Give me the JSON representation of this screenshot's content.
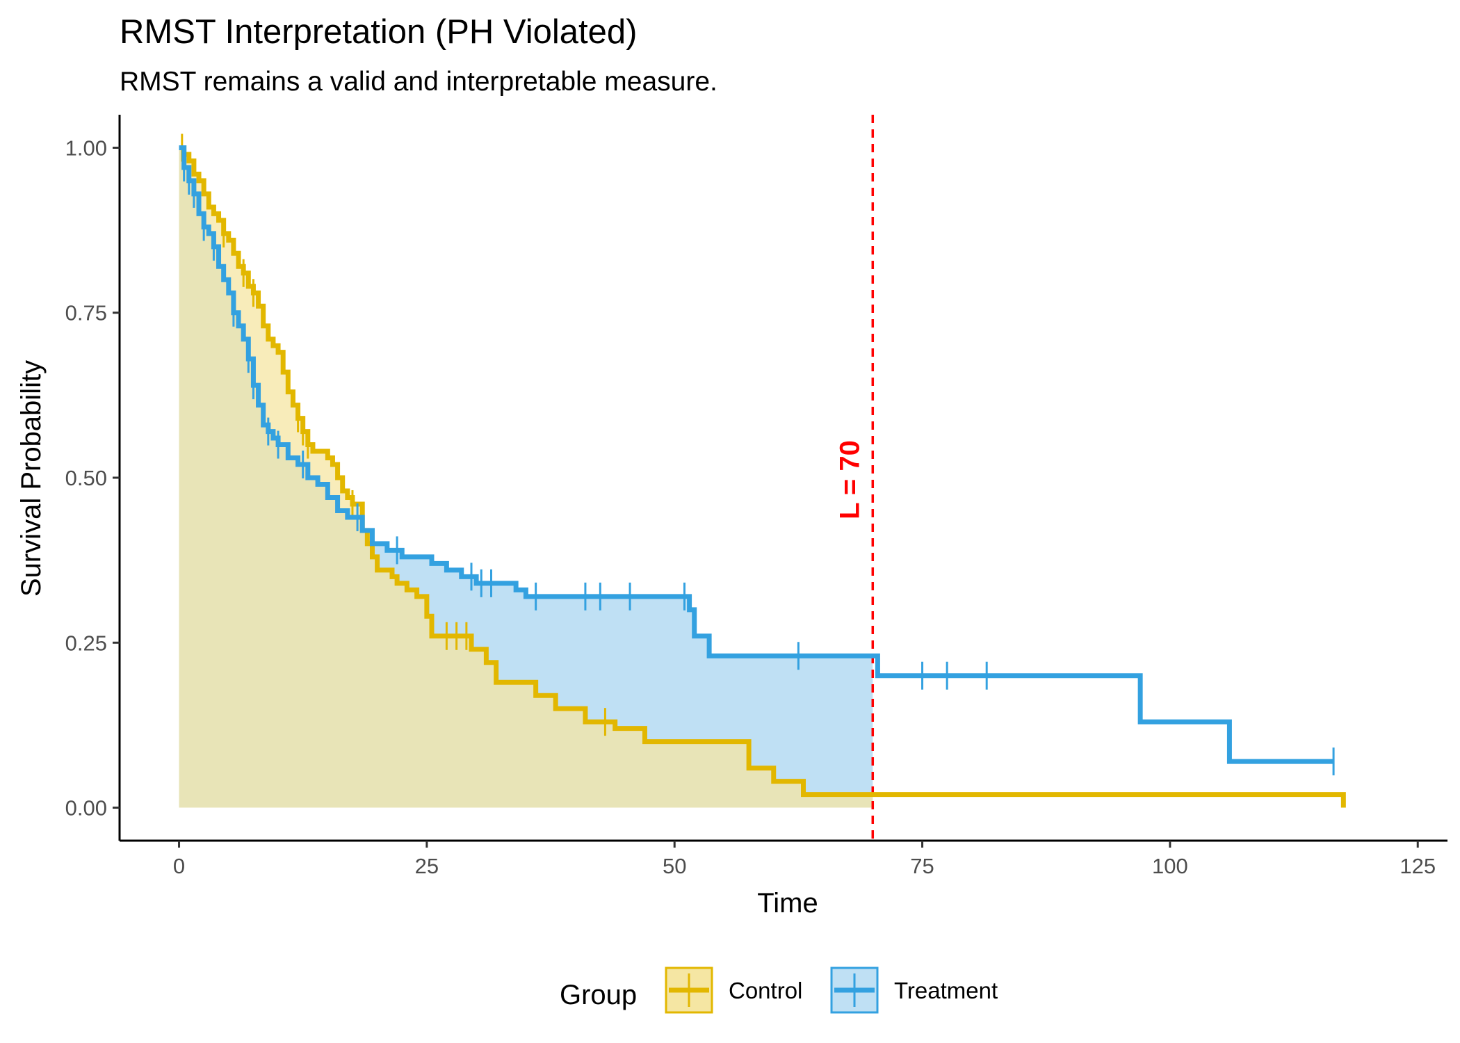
{
  "chart_data": {
    "type": "line",
    "title": "RMST Interpretation (PH Violated)",
    "subtitle": "RMST remains a valid and interpretable measure.",
    "xlabel": "Time",
    "ylabel": "Survival Probability",
    "xlim": [
      -6,
      128
    ],
    "ylim": [
      -0.05,
      1.05
    ],
    "x_ticks": [
      0,
      25,
      50,
      75,
      100,
      125
    ],
    "y_ticks": [
      0.0,
      0.25,
      0.5,
      0.75,
      1.0
    ],
    "x_tick_labels": [
      "0",
      "25",
      "50",
      "75",
      "100",
      "125"
    ],
    "y_tick_labels": [
      "0.00",
      "0.25",
      "0.50",
      "0.75",
      "1.00"
    ],
    "grid": false,
    "legend": {
      "title": "Group",
      "position": "bottom"
    },
    "reference_line": {
      "x": 70,
      "label": "L = 70",
      "color": "#ff0000",
      "style": "dashed"
    },
    "series": [
      {
        "name": "Control",
        "color": "#e2b700",
        "fill": "#f5e6a3",
        "steps": [
          [
            0,
            1.0
          ],
          [
            0.5,
            0.99
          ],
          [
            1,
            0.98
          ],
          [
            1.5,
            0.96
          ],
          [
            2,
            0.95
          ],
          [
            2.5,
            0.93
          ],
          [
            3,
            0.91
          ],
          [
            3.5,
            0.9
          ],
          [
            4,
            0.89
          ],
          [
            4.5,
            0.87
          ],
          [
            5,
            0.86
          ],
          [
            5.5,
            0.84
          ],
          [
            6,
            0.82
          ],
          [
            6.5,
            0.81
          ],
          [
            7,
            0.79
          ],
          [
            7.5,
            0.78
          ],
          [
            8,
            0.76
          ],
          [
            8.5,
            0.73
          ],
          [
            9,
            0.71
          ],
          [
            9.5,
            0.7
          ],
          [
            10,
            0.69
          ],
          [
            10.5,
            0.66
          ],
          [
            11,
            0.63
          ],
          [
            11.5,
            0.61
          ],
          [
            12,
            0.59
          ],
          [
            12.5,
            0.57
          ],
          [
            13,
            0.55
          ],
          [
            13.5,
            0.54
          ],
          [
            15,
            0.53
          ],
          [
            15.5,
            0.52
          ],
          [
            16,
            0.5
          ],
          [
            16.5,
            0.48
          ],
          [
            17,
            0.47
          ],
          [
            17.5,
            0.46
          ],
          [
            18.5,
            0.42
          ],
          [
            19,
            0.4
          ],
          [
            19.5,
            0.38
          ],
          [
            20,
            0.36
          ],
          [
            21.5,
            0.35
          ],
          [
            22,
            0.34
          ],
          [
            23,
            0.33
          ],
          [
            24,
            0.32
          ],
          [
            25,
            0.29
          ],
          [
            25.5,
            0.26
          ],
          [
            28,
            0.26
          ],
          [
            29.5,
            0.24
          ],
          [
            31,
            0.22
          ],
          [
            32,
            0.19
          ],
          [
            36,
            0.17
          ],
          [
            38,
            0.15
          ],
          [
            41,
            0.13
          ],
          [
            44,
            0.12
          ],
          [
            47,
            0.1
          ],
          [
            57.5,
            0.06
          ],
          [
            60,
            0.04
          ],
          [
            63,
            0.02
          ],
          [
            117.5,
            0.02
          ],
          [
            117.5,
            0.0
          ]
        ],
        "censor_x": [
          0.3,
          4.5,
          6.5,
          7.5,
          12.0,
          12.5,
          13.0,
          17.5,
          27.0,
          28.0,
          29.0,
          43.0
        ]
      },
      {
        "name": "Treatment",
        "color": "#33a1e0",
        "fill": "#bfe0f4",
        "steps": [
          [
            0,
            1.0
          ],
          [
            0.5,
            0.97
          ],
          [
            1,
            0.95
          ],
          [
            1.5,
            0.93
          ],
          [
            2,
            0.9
          ],
          [
            2.5,
            0.88
          ],
          [
            3,
            0.87
          ],
          [
            3.5,
            0.85
          ],
          [
            4,
            0.82
          ],
          [
            4.5,
            0.8
          ],
          [
            5,
            0.78
          ],
          [
            5.5,
            0.75
          ],
          [
            6,
            0.73
          ],
          [
            6.5,
            0.71
          ],
          [
            7,
            0.68
          ],
          [
            7.5,
            0.64
          ],
          [
            8,
            0.61
          ],
          [
            8.5,
            0.58
          ],
          [
            9,
            0.57
          ],
          [
            9.5,
            0.56
          ],
          [
            10,
            0.55
          ],
          [
            11,
            0.53
          ],
          [
            12,
            0.52
          ],
          [
            13,
            0.5
          ],
          [
            14,
            0.49
          ],
          [
            15,
            0.47
          ],
          [
            16,
            0.45
          ],
          [
            17,
            0.44
          ],
          [
            18.5,
            0.42
          ],
          [
            19.5,
            0.4
          ],
          [
            21,
            0.39
          ],
          [
            22.5,
            0.38
          ],
          [
            25.5,
            0.37
          ],
          [
            27,
            0.36
          ],
          [
            28.5,
            0.35
          ],
          [
            30,
            0.34
          ],
          [
            34,
            0.33
          ],
          [
            35,
            0.32
          ],
          [
            51.5,
            0.3
          ],
          [
            52,
            0.26
          ],
          [
            53.5,
            0.23
          ],
          [
            70,
            0.23
          ],
          [
            70.5,
            0.2
          ],
          [
            97,
            0.2
          ],
          [
            97,
            0.13
          ],
          [
            106,
            0.13
          ],
          [
            106,
            0.07
          ],
          [
            116.5,
            0.07
          ]
        ],
        "censor_x": [
          0.5,
          1.0,
          1.5,
          2.5,
          3.5,
          5.5,
          7.0,
          7.5,
          9.0,
          10.0,
          12.5,
          18.0,
          22.0,
          29.5,
          30.5,
          31.5,
          36.0,
          41.0,
          42.5,
          45.5,
          51.0,
          62.5,
          75.0,
          77.5,
          81.5,
          116.5
        ]
      }
    ]
  }
}
